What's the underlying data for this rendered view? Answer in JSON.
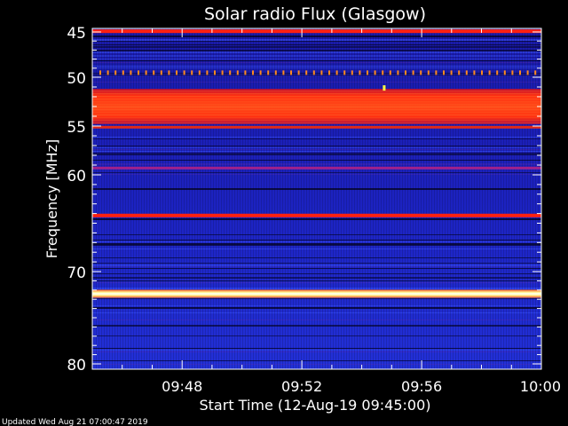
{
  "chart_data": {
    "type": "heatmap",
    "title": "Solar radio Flux (Glasgow)",
    "xlabel": "Start Time (12-Aug-19 09:45:00)",
    "ylabel": "Frequency [MHz]",
    "xlim": [
      "09:45",
      "10:00"
    ],
    "ylim": [
      80,
      44.5
    ],
    "x_ticks": [
      "09:48",
      "09:52",
      "09:56",
      "10:00"
    ],
    "y_ticks": [
      "45",
      "50",
      "55",
      "60",
      "70",
      "80"
    ],
    "grid": false,
    "colormap": "black-blue-red-yellow-white",
    "features": [
      {
        "kind": "narrow_band",
        "freq_mhz": 44.9,
        "level": "red"
      },
      {
        "kind": "dotted_band",
        "freq_mhz": 49.5,
        "level": "orange"
      },
      {
        "kind": "wide_band",
        "freq_mhz_range": [
          51.2,
          54.8
        ],
        "level": "red-orange"
      },
      {
        "kind": "narrow_band",
        "freq_mhz": 59.3,
        "level": "magenta"
      },
      {
        "kind": "narrow_band",
        "freq_mhz": 64.2,
        "level": "red"
      },
      {
        "kind": "narrow_band",
        "freq_mhz": 72.4,
        "level": "white-yellow"
      },
      {
        "kind": "burst",
        "time": "09:54:45",
        "freq_mhz": 51.1,
        "level": "yellow"
      }
    ]
  },
  "footer": {
    "updated": "Updated Wed Aug 21 07:00:47 2019"
  }
}
